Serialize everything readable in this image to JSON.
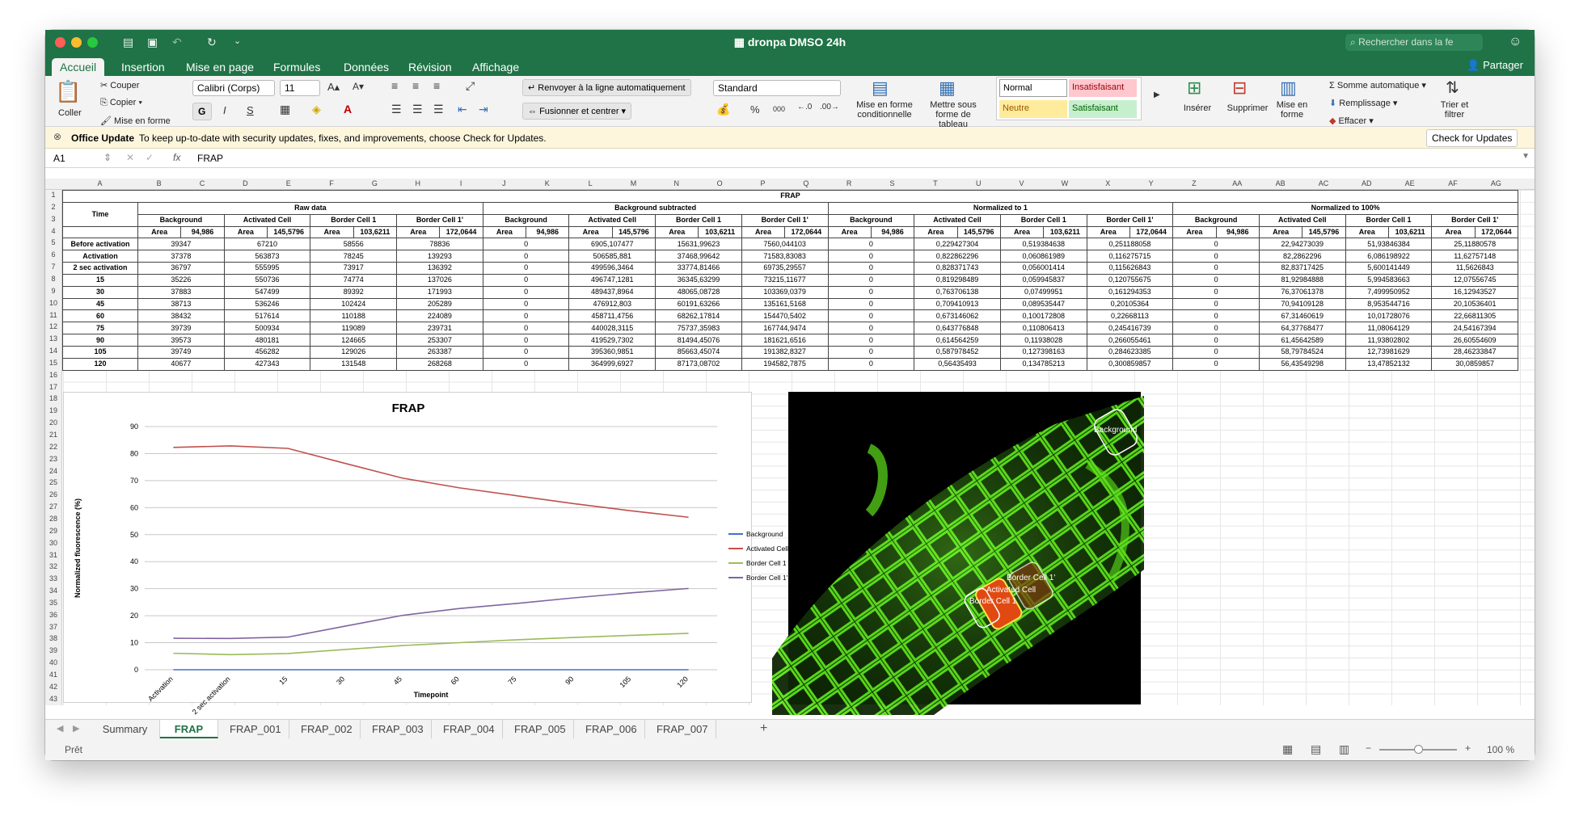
{
  "window": {
    "title": "dronpa DMSO 24h",
    "search_placeholder": "Rechercher dans la fe",
    "share_label": "Partager"
  },
  "ribbon_tabs": [
    "Accueil",
    "Insertion",
    "Mise en page",
    "Formules",
    "Données",
    "Révision",
    "Affichage"
  ],
  "clipboard": {
    "paste": "Coller",
    "cut": "Couper",
    "copy": "Copier",
    "format": "Mise en forme"
  },
  "font": {
    "name": "Calibri (Corps)",
    "size": "11",
    "bold": "G",
    "italic": "I",
    "underline": "S"
  },
  "alignment": {
    "wrap": "Renvoyer à la ligne automatiquement",
    "merge": "Fusionner et centrer"
  },
  "number": {
    "format": "Standard",
    "percent": "%",
    "thousands": "000"
  },
  "styles": {
    "conditional": "Mise en forme conditionnelle",
    "table": "Mettre sous forme de tableau",
    "normal": "Normal",
    "bad": "Insatisfaisant",
    "neutral": "Neutre",
    "good": "Satisfaisant"
  },
  "cells": {
    "insert": "Insérer",
    "delete": "Supprimer",
    "format": "Mise en forme"
  },
  "editing": {
    "autosum": "Somme automatique",
    "fill": "Remplissage",
    "clear": "Effacer",
    "sort": "Trier et filtrer"
  },
  "message": {
    "title": "Office Update",
    "text": "To keep up-to-date with security updates, fixes, and improvements, choose Check for Updates.",
    "button": "Check for Updates"
  },
  "formula": {
    "cell": "A1",
    "fx": "fx",
    "value": "FRAP"
  },
  "columns": [
    "A",
    "B",
    "C",
    "D",
    "E",
    "F",
    "G",
    "H",
    "I",
    "J",
    "K",
    "L",
    "M",
    "N",
    "O",
    "P",
    "Q",
    "R",
    "S",
    "T",
    "U",
    "V",
    "W",
    "X",
    "Y",
    "Z",
    "AA",
    "AB",
    "AC",
    "AD",
    "AE",
    "AF",
    "AG"
  ],
  "rows": [
    "1",
    "2",
    "3",
    "4",
    "5",
    "6",
    "7",
    "8",
    "9",
    "10",
    "11",
    "12",
    "13",
    "14",
    "15",
    "16",
    "17",
    "18",
    "19",
    "20",
    "21",
    "22",
    "23",
    "24",
    "25",
    "26",
    "27",
    "28",
    "29",
    "30",
    "31",
    "32",
    "33",
    "34",
    "35",
    "36",
    "37",
    "38",
    "39",
    "40",
    "41",
    "42",
    "43"
  ],
  "sheet": {
    "title": "FRAP",
    "groups": [
      "Raw data",
      "Background subtracted",
      "Normalized to 1",
      "Normalized to 100%"
    ],
    "time_label": "Time",
    "cells": [
      "Background",
      "Activated Cell",
      "Border Cell 1",
      "Border Cell 1'"
    ],
    "area_label": "Area",
    "areas": [
      "94,986",
      "145,5796",
      "103,6211",
      "172,0644"
    ],
    "data": [
      [
        "Before activation",
        "39347",
        "67210",
        "58556",
        "78836",
        "0",
        "6905,107477",
        "15631,99623",
        "7560,044103",
        "0",
        "0,229427304",
        "0,519384638",
        "0,251188058",
        "0",
        "22,94273039",
        "51,93846384",
        "25,11880578"
      ],
      [
        "Activation",
        "37378",
        "563873",
        "78245",
        "139293",
        "0",
        "506585,881",
        "37468,99642",
        "71583,83083",
        "0",
        "0,822862296",
        "0,060861989",
        "0,116275715",
        "0",
        "82,2862296",
        "6,086198922",
        "11,62757148"
      ],
      [
        "2 sec activation",
        "36797",
        "555995",
        "73917",
        "136392",
        "0",
        "499596,3464",
        "33774,81466",
        "69735,29557",
        "0",
        "0,828371743",
        "0,056001414",
        "0,115626843",
        "0",
        "82,83717425",
        "5,600141449",
        "11,5626843"
      ],
      [
        "15",
        "35226",
        "550736",
        "74774",
        "137026",
        "0",
        "496747,1281",
        "36345,63299",
        "73215,11677",
        "0",
        "0,819298489",
        "0,059945837",
        "0,120755675",
        "0",
        "81,92984888",
        "5,994583663",
        "12,07556745"
      ],
      [
        "30",
        "37883",
        "547499",
        "89392",
        "171993",
        "0",
        "489437,8964",
        "48065,08728",
        "103369,0379",
        "0",
        "0,763706138",
        "0,07499951",
        "0,161294353",
        "0",
        "76,37061378",
        "7,499950952",
        "16,12943527"
      ],
      [
        "45",
        "38713",
        "536246",
        "102424",
        "205289",
        "0",
        "476912,803",
        "60191,63266",
        "135161,5168",
        "0",
        "0,709410913",
        "0,089535447",
        "0,20105364",
        "0",
        "70,94109128",
        "8,953544716",
        "20,10536401"
      ],
      [
        "60",
        "38432",
        "517614",
        "110188",
        "224089",
        "0",
        "458711,4756",
        "68262,17814",
        "154470,5402",
        "0",
        "0,673146062",
        "0,100172808",
        "0,22668113",
        "0",
        "67,31460619",
        "10,01728076",
        "22,66811305"
      ],
      [
        "75",
        "39739",
        "500934",
        "119089",
        "239731",
        "0",
        "440028,3115",
        "75737,35983",
        "167744,9474",
        "0",
        "0,643776848",
        "0,110806413",
        "0,245416739",
        "0",
        "64,37768477",
        "11,08064129",
        "24,54167394"
      ],
      [
        "90",
        "39573",
        "480181",
        "124665",
        "253307",
        "0",
        "419529,7302",
        "81494,45076",
        "181621,6516",
        "0",
        "0,614564259",
        "0,11938028",
        "0,266055461",
        "0",
        "61,45642589",
        "11,93802802",
        "26,60554609"
      ],
      [
        "105",
        "39749",
        "456282",
        "129026",
        "263387",
        "0",
        "395360,9851",
        "85663,45074",
        "191382,8327",
        "0",
        "0,587978452",
        "0,127398163",
        "0,284623385",
        "0",
        "58,79784524",
        "12,73981629",
        "28,46233847"
      ],
      [
        "120",
        "40677",
        "427343",
        "131548",
        "268268",
        "0",
        "364999,6927",
        "87173,08702",
        "194582,7875",
        "0",
        "0,56435493",
        "0,134785213",
        "0,300859857",
        "0",
        "56,43549298",
        "13,47852132",
        "30,0859857"
      ]
    ]
  },
  "chart_data": {
    "type": "line",
    "title": "FRAP",
    "xlabel": "Timepoint",
    "ylabel": "Normalized fluorescence (%)",
    "ylim": [
      0,
      90
    ],
    "yticks": [
      "0",
      "10",
      "20",
      "30",
      "40",
      "50",
      "60",
      "70",
      "80",
      "90"
    ],
    "categories": [
      "Activation",
      "2 sec activation",
      "15",
      "30",
      "45",
      "60",
      "75",
      "90",
      "105",
      "120"
    ],
    "series": [
      {
        "name": "Background",
        "color": "#4472c4",
        "values": [
          0,
          0,
          0,
          0,
          0,
          0,
          0,
          0,
          0,
          0
        ]
      },
      {
        "name": "Activated Cell",
        "color": "#c0504d",
        "values": [
          82.29,
          82.84,
          81.93,
          76.37,
          70.94,
          67.31,
          64.38,
          61.46,
          58.8,
          56.44
        ]
      },
      {
        "name": "Border Cell 1",
        "color": "#9bbb59",
        "values": [
          6.09,
          5.6,
          5.99,
          7.5,
          8.95,
          10.02,
          11.08,
          11.94,
          12.74,
          13.48
        ]
      },
      {
        "name": "Border Cell 1'",
        "color": "#8064a2",
        "values": [
          11.63,
          11.56,
          12.08,
          16.13,
          20.11,
          22.67,
          24.54,
          26.61,
          28.46,
          30.09
        ]
      }
    ]
  },
  "image_labels": [
    "Background",
    "Border Cell 1'",
    "Activated Cell",
    "Border Cell 1"
  ],
  "sheet_tabs": [
    "Summary",
    "FRAP",
    "FRAP_001",
    "FRAP_002",
    "FRAP_003",
    "FRAP_004",
    "FRAP_005",
    "FRAP_006",
    "FRAP_007"
  ],
  "status": {
    "ready": "Prêt",
    "zoom": "100 %"
  }
}
